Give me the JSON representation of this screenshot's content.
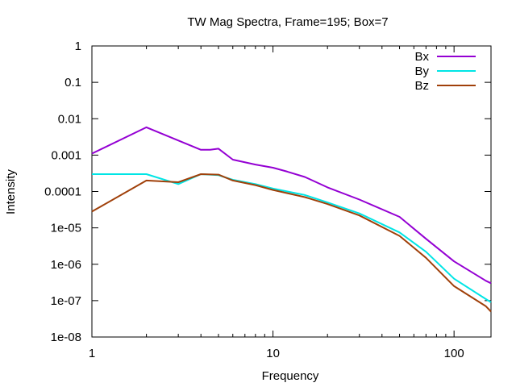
{
  "chart_data": {
    "type": "line",
    "title": "TW Mag Spectra, Frame=195; Box=7",
    "xlabel": "Frequency",
    "ylabel": "Intensity",
    "xscale": "log",
    "yscale": "log",
    "xlim": [
      1,
      160
    ],
    "ylim": [
      1e-08,
      1
    ],
    "x_ticks": [
      1,
      10,
      100
    ],
    "x_tick_labels": [
      "1",
      "10",
      "100"
    ],
    "y_ticks": [
      1e-08,
      1e-07,
      1e-06,
      1e-05,
      0.0001,
      0.001,
      0.01,
      0.1,
      1
    ],
    "y_tick_labels": [
      "1e-08",
      "1e-07",
      "1e-06",
      "1e-05",
      "0.0001",
      "0.001",
      "0.01",
      "0.1",
      "1"
    ],
    "grid": false,
    "legend_position": "top-right",
    "series": [
      {
        "name": "Bx",
        "color": "#9400d3",
        "x": [
          1,
          2,
          4,
          4.5,
          5,
          6,
          8,
          10,
          12,
          15,
          20,
          30,
          50,
          70,
          100,
          150,
          160
        ],
        "y": [
          0.0011,
          0.0058,
          0.0014,
          0.0014,
          0.0015,
          0.00075,
          0.00055,
          0.00045,
          0.00035,
          0.00025,
          0.00013,
          6e-05,
          2e-05,
          5e-06,
          1.2e-06,
          3.5e-07,
          3e-07
        ]
      },
      {
        "name": "By",
        "color": "#00e5e5",
        "x": [
          1,
          2,
          3,
          4,
          5,
          6,
          8,
          10,
          12,
          15,
          20,
          30,
          50,
          70,
          100,
          150,
          160
        ],
        "y": [
          0.0003,
          0.0003,
          0.00016,
          0.0003,
          0.00028,
          0.00021,
          0.00016,
          0.00012,
          0.0001,
          8e-05,
          5e-05,
          2.5e-05,
          7.5e-06,
          2.2e-06,
          4e-07,
          1.1e-07,
          9e-08
        ]
      },
      {
        "name": "Bz",
        "color": "#a0400a",
        "x": [
          1,
          2,
          3,
          4,
          5,
          6,
          8,
          10,
          12,
          15,
          20,
          30,
          50,
          70,
          100,
          150,
          160
        ],
        "y": [
          2.8e-05,
          0.0002,
          0.00018,
          0.0003,
          0.00029,
          0.0002,
          0.00015,
          0.00011,
          9e-05,
          7e-05,
          4.5e-05,
          2.2e-05,
          6e-06,
          1.5e-06,
          2.5e-07,
          7e-08,
          5e-08
        ]
      }
    ]
  }
}
